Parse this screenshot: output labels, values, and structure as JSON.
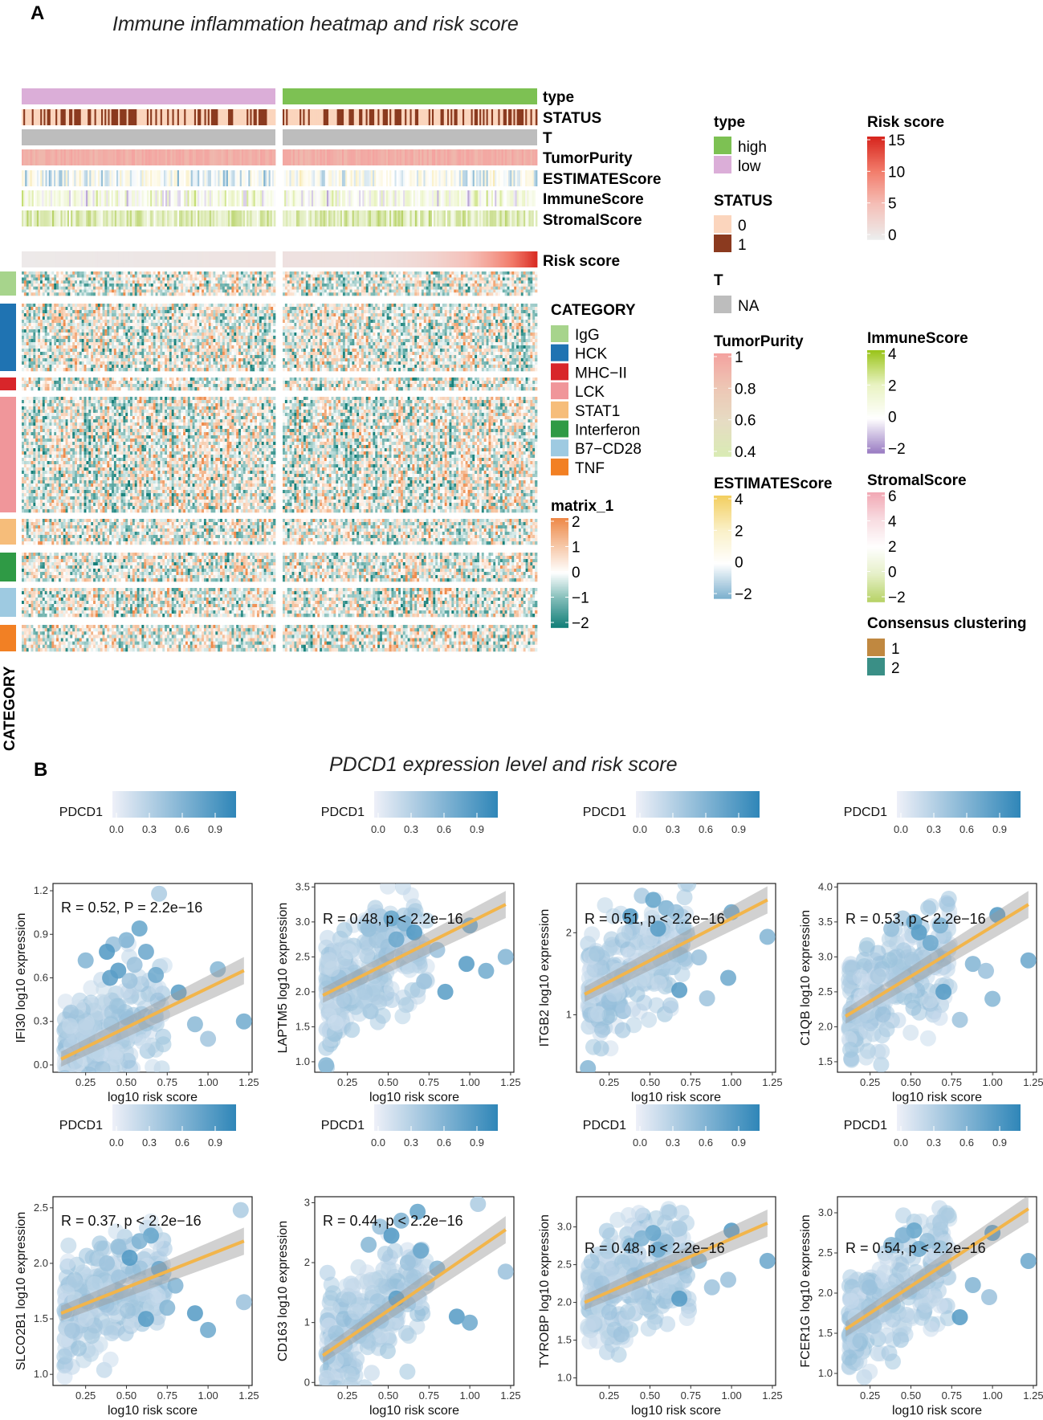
{
  "panel_a": {
    "letter": "A",
    "title": "Immune inflammation heatmap and  risk score",
    "tracks": [
      "type",
      "STATUS",
      "T",
      "TumorPurity",
      "ESTIMATEScore",
      "ImmuneScore",
      "StromalScore",
      "Risk score"
    ],
    "category_axis_label": "CATEGORY",
    "legends": {
      "type": {
        "title": "type",
        "items": [
          {
            "label": "high",
            "color": "#7dc153"
          },
          {
            "label": "low",
            "color": "#dbaed8"
          }
        ]
      },
      "status": {
        "title": "STATUS",
        "items": [
          {
            "label": "0",
            "color": "#fbd5bd"
          },
          {
            "label": "1",
            "color": "#8b3a1f"
          }
        ]
      },
      "t": {
        "title": "T",
        "items": [
          {
            "label": "NA",
            "color": "#bdbdbd"
          }
        ]
      },
      "risk": {
        "title": "Risk score",
        "ticks": [
          "15",
          "10",
          "5",
          "0"
        ],
        "colors": [
          "#d7261e",
          "#f27c6b",
          "#f5c0b8",
          "#ececec"
        ]
      },
      "purity": {
        "title": "TumorPurity",
        "ticks": [
          "1",
          "0.8",
          "0.6",
          "0.4"
        ],
        "colors": [
          "#f4a3a0",
          "#edc7b5",
          "#e6dcc3",
          "#d9ebb4"
        ]
      },
      "immune": {
        "title": "ImmuneScore",
        "ticks": [
          "4",
          "2",
          "0",
          "−2"
        ],
        "colors": [
          "#9bc51c",
          "#e9f3c2",
          "#ffffff",
          "#9c7fc4"
        ]
      },
      "estimate": {
        "title": "ESTIMATEScore",
        "ticks": [
          "4",
          "2",
          "0",
          "−2"
        ],
        "colors": [
          "#f3cf61",
          "#faf0c7",
          "#ffffff",
          "#7fb2cf"
        ]
      },
      "stromal": {
        "title": "StromalScore",
        "ticks": [
          "6",
          "4",
          "2",
          "0",
          "−2"
        ],
        "colors": [
          "#f2a9b5",
          "#f8dde2",
          "#ffffff",
          "#e6f0c9",
          "#b9d36a"
        ]
      },
      "category": {
        "title": "CATEGORY",
        "items": [
          {
            "label": "IgG",
            "color": "#a7d48c"
          },
          {
            "label": "HCK",
            "color": "#1f73b2"
          },
          {
            "label": "MHC−II",
            "color": "#d8262a"
          },
          {
            "label": "LCK",
            "color": "#f0969a"
          },
          {
            "label": "STAT1",
            "color": "#f6bd7a"
          },
          {
            "label": "Interferon",
            "color": "#2f9a45"
          },
          {
            "label": "B7−CD28",
            "color": "#9ecae1"
          },
          {
            "label": "TNF",
            "color": "#f28024"
          }
        ]
      },
      "matrix": {
        "title": "matrix_1",
        "ticks": [
          "2",
          "1",
          "0",
          "−1",
          "−2"
        ],
        "colors": [
          "#ee8a4a",
          "#f6c7a6",
          "#ffffff",
          "#7dbab6",
          "#15807a"
        ]
      },
      "consensus": {
        "title": "Consensus clustering",
        "items": [
          {
            "label": "1",
            "color": "#c08840"
          },
          {
            "label": "2",
            "color": "#3a8f86"
          }
        ]
      }
    }
  },
  "panel_b": {
    "letter": "B",
    "title": "PDCD1 expression level  and  risk  score",
    "colorbar": {
      "label": "PDCD1",
      "ticks": [
        "0.0",
        "0.3",
        "0.6",
        "0.9"
      ],
      "low": "#eef0f8",
      "high": "#2f86b8"
    }
  },
  "chart_data": [
    {
      "type": "scatter",
      "gene": "IFI30",
      "ylabel": "IFI30 log10 expression",
      "xlabel": "log10 risk score",
      "annotation": "R = 0.52,  P = 2.2e−16",
      "xlim": [
        0.05,
        1.27
      ],
      "ylim": [
        -0.05,
        1.25
      ],
      "xticks": [
        "0.25",
        "0.50",
        "0.75",
        "1.00",
        "1.25"
      ],
      "yticks": [
        "0.0",
        "0.3",
        "0.6",
        "0.9",
        "1.2"
      ],
      "fit": {
        "x0": 0.1,
        "y0": 0.04,
        "x1": 1.22,
        "y1": 0.65
      },
      "highlight_points": [
        [
          0.7,
          1.18
        ],
        [
          0.58,
          0.94
        ],
        [
          0.5,
          0.86
        ],
        [
          0.42,
          0.83
        ],
        [
          0.38,
          0.78
        ],
        [
          0.62,
          0.78
        ],
        [
          0.25,
          0.72
        ],
        [
          0.55,
          0.69
        ],
        [
          0.45,
          0.65
        ],
        [
          0.68,
          0.62
        ],
        [
          1.06,
          0.66
        ],
        [
          0.52,
          0.58
        ],
        [
          0.82,
          0.5
        ],
        [
          1.22,
          0.3
        ],
        [
          0.92,
          0.28
        ],
        [
          1.0,
          0.18
        ],
        [
          0.4,
          0.6
        ]
      ]
    },
    {
      "type": "scatter",
      "gene": "LAPTM5",
      "ylabel": "LAPTM5 log10 expression",
      "xlabel": "log10 risk score",
      "annotation": "R = 0.48, p < 2.2e−16",
      "xlim": [
        0.05,
        1.27
      ],
      "ylim": [
        0.85,
        3.55
      ],
      "xticks": [
        "0.25",
        "0.50",
        "0.75",
        "1.00",
        "1.25"
      ],
      "yticks": [
        "1.0",
        "1.5",
        "2.0",
        "2.5",
        "3.0",
        "3.5"
      ],
      "fit": {
        "x0": 0.1,
        "y0": 1.95,
        "x1": 1.22,
        "y1": 3.25
      },
      "highlight_points": [
        [
          0.45,
          3.08
        ],
        [
          0.52,
          3.05
        ],
        [
          0.6,
          2.98
        ],
        [
          0.38,
          2.9
        ],
        [
          0.66,
          2.85
        ],
        [
          1.0,
          2.95
        ],
        [
          1.22,
          2.5
        ],
        [
          0.8,
          2.6
        ],
        [
          0.98,
          2.4
        ],
        [
          0.55,
          2.75
        ],
        [
          0.12,
          0.95
        ],
        [
          0.72,
          2.15
        ],
        [
          0.85,
          2.0
        ],
        [
          1.1,
          2.3
        ]
      ]
    },
    {
      "type": "scatter",
      "gene": "ITGB2",
      "ylabel": "ITGB2 log10 expression",
      "xlabel": "log10 risk score",
      "annotation": "R = 0.51, p < 2.2e−16",
      "xlim": [
        0.05,
        1.27
      ],
      "ylim": [
        0.3,
        2.6
      ],
      "xticks": [
        "0.25",
        "0.50",
        "0.75",
        "1.00",
        "1.25"
      ],
      "yticks": [
        "1",
        "2"
      ],
      "fit": {
        "x0": 0.1,
        "y0": 1.25,
        "x1": 1.22,
        "y1": 2.4
      },
      "highlight_points": [
        [
          0.45,
          2.45
        ],
        [
          0.52,
          2.4
        ],
        [
          0.6,
          2.3
        ],
        [
          0.66,
          2.25
        ],
        [
          0.38,
          2.2
        ],
        [
          1.0,
          2.25
        ],
        [
          1.22,
          1.95
        ],
        [
          0.8,
          1.7
        ],
        [
          0.68,
          1.3
        ],
        [
          0.98,
          1.45
        ],
        [
          0.12,
          0.35
        ],
        [
          0.85,
          1.2
        ],
        [
          0.55,
          2.05
        ]
      ]
    },
    {
      "type": "scatter",
      "gene": "C1QB",
      "ylabel": "C1QB log10 expression",
      "xlabel": "log10 risk score",
      "annotation": "R = 0.53, p < 2.2e−16",
      "xlim": [
        0.05,
        1.27
      ],
      "ylim": [
        1.35,
        4.05
      ],
      "xticks": [
        "0.25",
        "0.50",
        "0.75",
        "1.00",
        "1.25"
      ],
      "yticks": [
        "1.5",
        "2.0",
        "2.5",
        "3.0",
        "3.5",
        "4.0"
      ],
      "fit": {
        "x0": 0.1,
        "y0": 2.15,
        "x1": 1.22,
        "y1": 3.75
      },
      "highlight_points": [
        [
          0.45,
          3.55
        ],
        [
          0.52,
          3.5
        ],
        [
          0.68,
          3.45
        ],
        [
          0.38,
          3.4
        ],
        [
          1.03,
          3.6
        ],
        [
          1.22,
          2.95
        ],
        [
          0.88,
          2.9
        ],
        [
          0.96,
          2.8
        ],
        [
          0.7,
          2.5
        ],
        [
          0.62,
          3.2
        ],
        [
          1.0,
          2.4
        ],
        [
          0.8,
          2.1
        ],
        [
          0.55,
          3.35
        ]
      ]
    },
    {
      "type": "scatter",
      "gene": "SLCO2B1",
      "ylabel": "SLCO2B1 log10 expression",
      "xlabel": "log10 risk score",
      "annotation": "R = 0.37, p < 2.2e−16",
      "xlim": [
        0.05,
        1.27
      ],
      "ylim": [
        0.9,
        2.6
      ],
      "xticks": [
        "0.25",
        "0.50",
        "0.75",
        "1.00",
        "1.25"
      ],
      "yticks": [
        "1.0",
        "1.5",
        "2.0",
        "2.5"
      ],
      "fit": {
        "x0": 0.1,
        "y0": 1.55,
        "x1": 1.22,
        "y1": 2.2
      },
      "highlight_points": [
        [
          1.2,
          2.48
        ],
        [
          0.65,
          2.25
        ],
        [
          0.58,
          2.2
        ],
        [
          0.45,
          2.15
        ],
        [
          0.52,
          2.05
        ],
        [
          0.7,
          1.95
        ],
        [
          0.8,
          1.8
        ],
        [
          1.22,
          1.65
        ],
        [
          0.92,
          1.55
        ],
        [
          1.0,
          1.4
        ],
        [
          0.75,
          1.6
        ],
        [
          0.38,
          2.0
        ],
        [
          0.62,
          1.5
        ]
      ]
    },
    {
      "type": "scatter",
      "gene": "CD163",
      "ylabel": "CD163 log10 expression",
      "xlabel": "log10 risk score",
      "annotation": "R = 0.44, p < 2.2e−16",
      "xlim": [
        0.05,
        1.27
      ],
      "ylim": [
        -0.05,
        3.1
      ],
      "xticks": [
        "0.25",
        "0.50",
        "0.75",
        "1.00",
        "1.25"
      ],
      "yticks": [
        "0",
        "1",
        "2",
        "3"
      ],
      "fit": {
        "x0": 0.1,
        "y0": 0.45,
        "x1": 1.22,
        "y1": 2.55
      },
      "highlight_points": [
        [
          1.05,
          2.98
        ],
        [
          0.68,
          2.85
        ],
        [
          0.58,
          2.7
        ],
        [
          0.45,
          2.6
        ],
        [
          0.52,
          2.45
        ],
        [
          0.7,
          2.2
        ],
        [
          0.8,
          1.9
        ],
        [
          1.22,
          1.85
        ],
        [
          0.92,
          1.1
        ],
        [
          1.0,
          1.0
        ],
        [
          0.38,
          2.3
        ],
        [
          0.62,
          2.0
        ],
        [
          0.55,
          1.4
        ]
      ]
    },
    {
      "type": "scatter",
      "gene": "TYROBP",
      "ylabel": "TYROBP log10 expression",
      "xlabel": "log10 risk score",
      "annotation": "R = 0.48, p < 2.2e−16",
      "xlim": [
        0.05,
        1.27
      ],
      "ylim": [
        0.9,
        3.4
      ],
      "xticks": [
        "0.25",
        "0.50",
        "0.75",
        "1.00",
        "1.25"
      ],
      "yticks": [
        "1.0",
        "1.5",
        "2.0",
        "2.5",
        "3.0"
      ],
      "fit": {
        "x0": 0.1,
        "y0": 2.0,
        "x1": 1.22,
        "y1": 3.05
      },
      "highlight_points": [
        [
          0.68,
          2.98
        ],
        [
          0.52,
          2.92
        ],
        [
          0.45,
          2.85
        ],
        [
          0.6,
          2.8
        ],
        [
          1.0,
          2.95
        ],
        [
          1.22,
          2.55
        ],
        [
          0.8,
          2.55
        ],
        [
          0.98,
          2.3
        ],
        [
          0.68,
          2.05
        ],
        [
          0.55,
          2.7
        ],
        [
          0.38,
          2.75
        ],
        [
          0.88,
          2.2
        ]
      ]
    },
    {
      "type": "scatter",
      "gene": "FCER1G",
      "ylabel": "FCER1G log10 expression",
      "xlabel": "log10 risk score",
      "annotation": "R = 0.54, p < 2.2e−16",
      "xlim": [
        0.05,
        1.27
      ],
      "ylim": [
        0.85,
        3.2
      ],
      "xticks": [
        "0.25",
        "0.50",
        "0.75",
        "1.00",
        "1.25"
      ],
      "yticks": [
        "1.0",
        "1.5",
        "2.0",
        "2.5",
        "3.0"
      ],
      "fit": {
        "x0": 0.1,
        "y0": 1.55,
        "x1": 1.22,
        "y1": 3.05
      },
      "highlight_points": [
        [
          0.68,
          2.88
        ],
        [
          0.52,
          2.78
        ],
        [
          0.45,
          2.72
        ],
        [
          0.6,
          2.65
        ],
        [
          1.0,
          2.75
        ],
        [
          1.22,
          2.4
        ],
        [
          0.88,
          2.1
        ],
        [
          0.98,
          1.95
        ],
        [
          0.8,
          1.7
        ],
        [
          0.55,
          2.55
        ],
        [
          0.38,
          2.6
        ],
        [
          0.7,
          2.3
        ]
      ]
    }
  ]
}
